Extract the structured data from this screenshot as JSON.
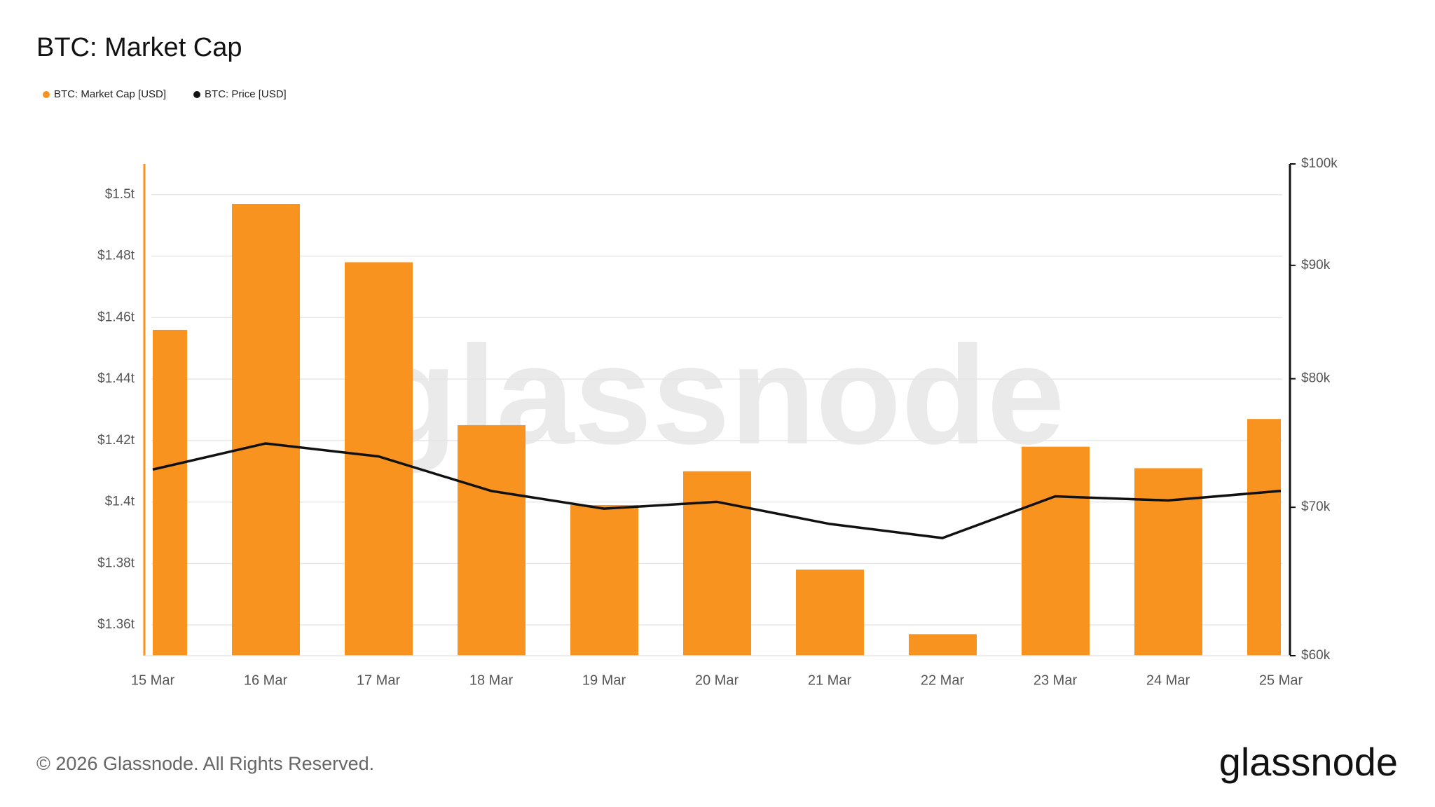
{
  "chart_data": {
    "type": "bar",
    "title": "BTC: Market Cap",
    "categories": [
      "15 Mar",
      "16 Mar",
      "17 Mar",
      "18 Mar",
      "19 Mar",
      "20 Mar",
      "21 Mar",
      "22 Mar",
      "23 Mar",
      "24 Mar",
      "25 Mar"
    ],
    "series": [
      {
        "name": "BTC: Market Cap [USD]",
        "type": "bar",
        "color": "#f7931e",
        "values": [
          1.456,
          1.497,
          1.478,
          1.425,
          1.399,
          1.41,
          1.378,
          1.357,
          1.418,
          1.411,
          1.427
        ]
      },
      {
        "name": "BTC: Price [USD]",
        "type": "line",
        "axis": "y2",
        "color": "#111111",
        "values": [
          72800,
          74800,
          73800,
          71200,
          69900,
          70400,
          68800,
          67800,
          70800,
          70500,
          71200
        ]
      }
    ],
    "ylim": [
      1.35,
      1.51
    ],
    "yticks": [
      {
        "value": 1.36,
        "label": "$1.36t"
      },
      {
        "value": 1.38,
        "label": "$1.38t"
      },
      {
        "value": 1.4,
        "label": "$1.4t"
      },
      {
        "value": 1.42,
        "label": "$1.42t"
      },
      {
        "value": 1.44,
        "label": "$1.44t"
      },
      {
        "value": 1.46,
        "label": "$1.46t"
      },
      {
        "value": 1.48,
        "label": "$1.48t"
      },
      {
        "value": 1.5,
        "label": "$1.5t"
      }
    ],
    "y2lim": [
      60000,
      100000
    ],
    "y2scale": "log",
    "y2ticks": [
      {
        "value": 60000,
        "label": "$60k"
      },
      {
        "value": 70000,
        "label": "$70k"
      },
      {
        "value": 80000,
        "label": "$80k"
      },
      {
        "value": 90000,
        "label": "$90k"
      },
      {
        "value": 100000,
        "label": "$100k"
      }
    ],
    "grid": true,
    "legend": "top-left",
    "watermark": "glassnode",
    "footer": "© 2026 Glassnode. All Rights Reserved.",
    "logo": "glassnode"
  }
}
